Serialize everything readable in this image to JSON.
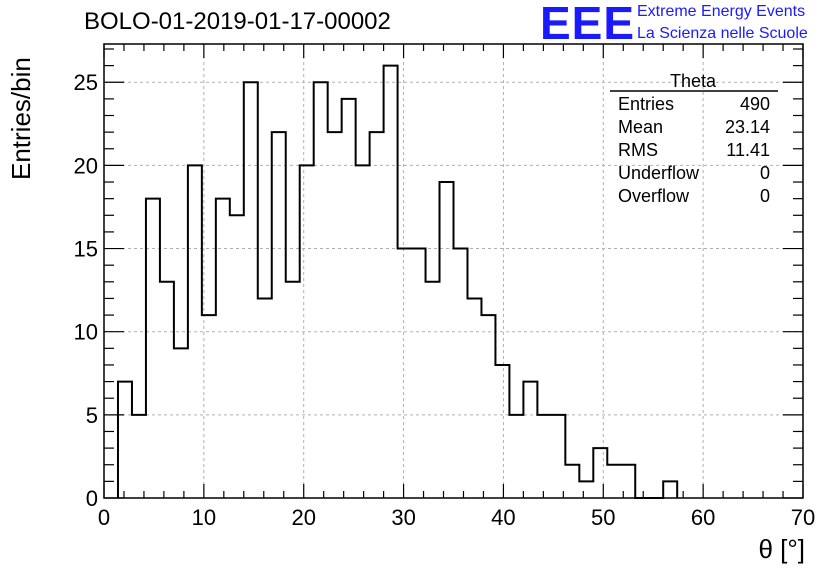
{
  "header": {
    "title": "BOLO-01-2019-01-17-00002",
    "brand": "EEE",
    "line1": "Extreme Energy Events",
    "line2": "La Scienza nelle Scuole"
  },
  "stats": {
    "name": "Theta",
    "rows": [
      {
        "label": "Entries",
        "value": "490"
      },
      {
        "label": "Mean",
        "value": "23.14"
      },
      {
        "label": "RMS",
        "value": "11.41"
      },
      {
        "label": "Underflow",
        "value": "0"
      },
      {
        "label": "Overflow",
        "value": "0"
      }
    ]
  },
  "colors": {
    "brand": "#1a1aff",
    "line": "#000000",
    "grid": "#b0b0b0"
  },
  "chart_data": {
    "type": "bar",
    "histogram": true,
    "xlabel": "θ [°]",
    "ylabel": "Entries/bin",
    "xlim": [
      0,
      70
    ],
    "ylim": [
      0,
      27.3
    ],
    "bin_edges_start": 1.4,
    "bin_width": 1.4,
    "values": [
      7,
      5,
      18,
      13,
      9,
      20,
      11,
      18,
      17,
      25,
      12,
      22,
      13,
      20,
      25,
      22,
      24,
      20,
      22,
      26,
      15,
      15,
      13,
      19,
      15,
      12,
      11,
      8,
      5,
      7,
      5,
      5,
      2,
      1,
      3,
      2,
      2,
      0,
      0,
      1
    ],
    "x_ticks": [
      0,
      10,
      20,
      30,
      40,
      50,
      60,
      70
    ],
    "y_ticks": [
      0,
      5,
      10,
      15,
      20,
      25
    ],
    "grid": true,
    "legend": "top-right"
  }
}
